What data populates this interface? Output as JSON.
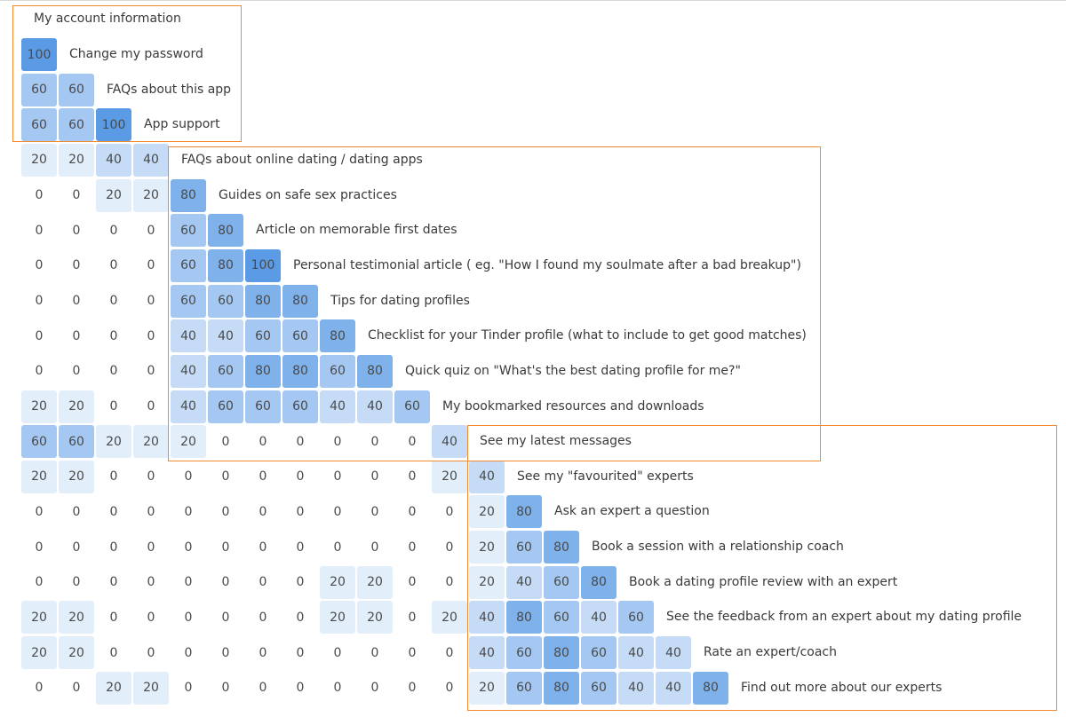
{
  "chart_data": {
    "type": "heatmap",
    "title": "",
    "section_title": "My account information",
    "rows": [
      {
        "label": "Change my password",
        "values": [
          100
        ]
      },
      {
        "label": "FAQs about this app",
        "values": [
          60,
          60
        ]
      },
      {
        "label": "App support",
        "values": [
          60,
          60,
          100
        ]
      },
      {
        "label": "FAQs about online dating / dating apps",
        "values": [
          20,
          20,
          40,
          40
        ]
      },
      {
        "label": "Guides on safe sex practices",
        "values": [
          0,
          0,
          20,
          20,
          80
        ]
      },
      {
        "label": "Article on memorable first dates",
        "values": [
          0,
          0,
          0,
          0,
          60,
          80
        ]
      },
      {
        "label": "Personal testimonial article ( eg. \"How I found my soulmate after a bad breakup\")",
        "values": [
          0,
          0,
          0,
          0,
          60,
          80,
          100
        ]
      },
      {
        "label": "Tips for dating profiles",
        "values": [
          0,
          0,
          0,
          0,
          60,
          60,
          80,
          80
        ]
      },
      {
        "label": "Checklist for your Tinder profile (what to include to get good matches)",
        "values": [
          0,
          0,
          0,
          0,
          40,
          40,
          60,
          60,
          80
        ]
      },
      {
        "label": "Quick quiz on \"What's the best dating profile for me?\"",
        "values": [
          0,
          0,
          0,
          0,
          40,
          60,
          80,
          80,
          60,
          80
        ]
      },
      {
        "label": "My bookmarked resources and downloads",
        "values": [
          20,
          20,
          0,
          0,
          40,
          60,
          60,
          60,
          40,
          40,
          60
        ]
      },
      {
        "label": "See my latest messages",
        "values": [
          60,
          60,
          20,
          20,
          20,
          0,
          0,
          0,
          0,
          0,
          0,
          40
        ]
      },
      {
        "label": "See my \"favourited\" experts",
        "values": [
          20,
          20,
          0,
          0,
          0,
          0,
          0,
          0,
          0,
          0,
          0,
          20,
          40
        ]
      },
      {
        "label": "Ask an expert a question",
        "values": [
          0,
          0,
          0,
          0,
          0,
          0,
          0,
          0,
          0,
          0,
          0,
          0,
          20,
          80
        ]
      },
      {
        "label": "Book a session with a relationship coach",
        "values": [
          0,
          0,
          0,
          0,
          0,
          0,
          0,
          0,
          0,
          0,
          0,
          0,
          20,
          60,
          80
        ]
      },
      {
        "label": "Book a dating profile review with an expert",
        "values": [
          0,
          0,
          0,
          0,
          0,
          0,
          0,
          0,
          20,
          20,
          0,
          0,
          20,
          40,
          60,
          80
        ]
      },
      {
        "label": "See the feedback from an expert about my dating profile",
        "values": [
          20,
          20,
          0,
          0,
          0,
          0,
          0,
          0,
          20,
          20,
          0,
          20,
          40,
          80,
          60,
          40,
          60
        ]
      },
      {
        "label": "Rate an expert/coach",
        "values": [
          20,
          20,
          0,
          0,
          0,
          0,
          0,
          0,
          0,
          0,
          0,
          0,
          40,
          60,
          80,
          60,
          40,
          40
        ]
      },
      {
        "label": "Find out more about our experts",
        "values": [
          0,
          0,
          20,
          20,
          0,
          0,
          0,
          0,
          0,
          0,
          0,
          0,
          20,
          60,
          80,
          60,
          40,
          40,
          80
        ]
      }
    ],
    "groups": [
      {
        "name": "account",
        "start_row": 0,
        "end_row": 2,
        "label_row": -1,
        "label": "My account information"
      },
      {
        "name": "content",
        "start_row": 3,
        "end_row": 10
      },
      {
        "name": "experts",
        "start_row": 11,
        "end_row": 18
      }
    ],
    "color_scale": {
      "0": "#ffffff",
      "20": "#e3eefb",
      "40": "#c6dcf6",
      "60": "#a4c8f2",
      "80": "#7fb1ea",
      "100": "#5b9be6"
    },
    "group_border_color": "#f08a2c"
  }
}
